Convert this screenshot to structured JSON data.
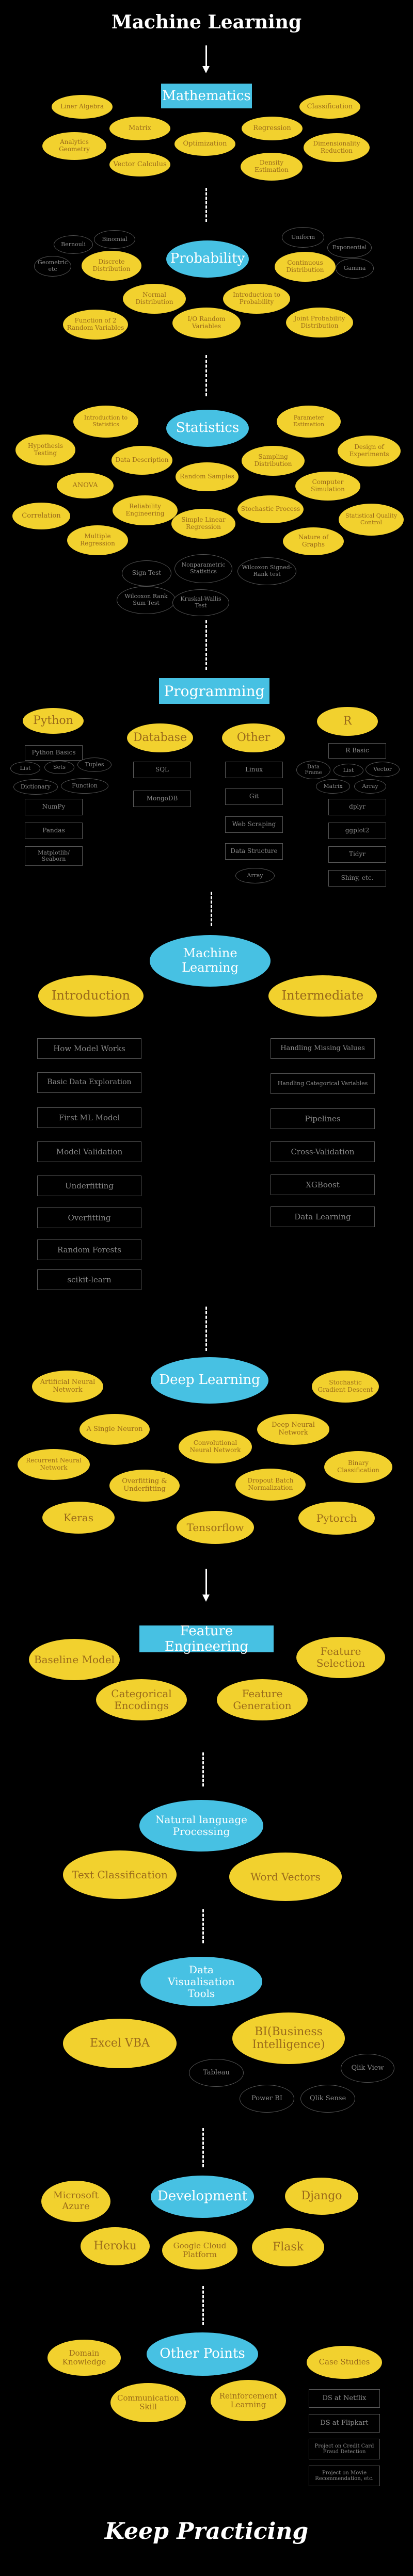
{
  "title": "Machine Learning",
  "footer": "Keep Practicing",
  "math": {
    "header": "Mathematics",
    "items": [
      "Liner Algebra",
      "Matrix",
      "Optimization",
      "Regression",
      "Classification",
      "Analytics Geometry",
      "Vector Calculus",
      "Density Estimation",
      "Dimensionality Reduction"
    ]
  },
  "prob": {
    "header": "Probability",
    "yellow": [
      "Discrete Distribution",
      "Normal Distribution",
      "Continuous Distribution",
      "Function of 2 Random Variables",
      "I/O Random Variables",
      "Introduction to Probability",
      "Joint Probability Distribution"
    ],
    "dark": [
      "Bernouli",
      "Binomial",
      "Geometric etc",
      "Uniform",
      "Exponential",
      "Gamma"
    ]
  },
  "stats": {
    "header": "Statistics",
    "yellow": [
      "Introduction to Statistics",
      "Parameter Estimation",
      "Hypothesis Testing",
      "Data Description",
      "Sampling Distribution",
      "Design of Experiments",
      "ANOVA",
      "Random Samples",
      "Computer Simulation",
      "Correlation",
      "Reliability Engineering",
      "Simple Linear Regression",
      "Stochastic Process",
      "Statistical Quality Control",
      "Multiple Regression",
      "Nature of Graphs"
    ],
    "dark": [
      "Sign Test",
      "Nonparametric Statistics",
      "Wilcoxon Signed-Rank test",
      "Wilcoxon Rank Sum Test",
      "Kruskal-Wallis Test"
    ]
  },
  "prog": {
    "header": "Programming",
    "python": "Python",
    "python_items": [
      "Python Basics",
      "List",
      "Sets",
      "Tuples",
      "Dictionary",
      "Function",
      "NumPy",
      "Pandas",
      "Matplotlib/ Seaborn"
    ],
    "database": "Database",
    "database_items": [
      "SQL",
      "MongoDB"
    ],
    "other": "Other",
    "other_items": [
      "Linux",
      "Git",
      "Web Scraping",
      "Data Structure",
      "Array"
    ],
    "r": "R",
    "r_items": [
      "R Basic",
      "Data Frame",
      "List",
      "Vector",
      "Matrix",
      "Array",
      "dplyr",
      "ggplot2",
      "Tidyr",
      "Shiny, etc."
    ]
  },
  "ml": {
    "header": "Machine Learning",
    "intro": "Introduction",
    "intermediate": "Intermediate",
    "intro_items": [
      "How Model Works",
      "Basic Data Exploration",
      "First ML Model",
      "Model Validation",
      "Underfitting",
      "Overfitting",
      "Random Forests",
      "scikit-learn"
    ],
    "inter_items": [
      "Handling Missing Values",
      "Handling Categorical Variables",
      "Pipelines",
      "Cross-Validation",
      "XGBoost",
      "Data Learning"
    ]
  },
  "dl": {
    "header": "Deep Learning",
    "items": [
      "Artificial Neural Network",
      "Stochastic Gradient Descent",
      "A Single Neuron",
      "Deep Neural Network",
      "Recurrent Neural Network",
      "Convolutional Neural Network",
      "Binary Classification",
      "Overfitting & Underfitting",
      "Dropout Batch Normalization",
      "Keras",
      "Tensorflow",
      "Pytorch"
    ]
  },
  "fe": {
    "header": "Feature Engineering",
    "items": [
      "Baseline Model",
      "Feature Selection",
      "Categorical Encodings",
      "Feature Generation"
    ]
  },
  "nlp": {
    "header": "Natural language Processing",
    "items": [
      "Text Classification",
      "Word Vectors"
    ]
  },
  "viz": {
    "header": "Data Visualisation Tools",
    "yellow": [
      "Excel VBA",
      "BI(Business Intelligence)"
    ],
    "dark": [
      "Tableau",
      "Power BI",
      "Qlik Sense",
      "Qlik View"
    ]
  },
  "dev": {
    "header": "Development",
    "items": [
      "Microsoft Azure",
      "Django",
      "Heroku",
      "Google Cloud Platform",
      "Flask"
    ]
  },
  "other": {
    "header": "Other Points",
    "yellow": [
      "Domain Knowledge",
      "Case Studies",
      "Communication Skill",
      "Reinforcement Learning"
    ],
    "boxes": [
      "DS at Netflix",
      "DS at Flipkart",
      "Project on Credit Card Fraud Detection",
      "Project on Movie Recommendation, etc."
    ]
  }
}
